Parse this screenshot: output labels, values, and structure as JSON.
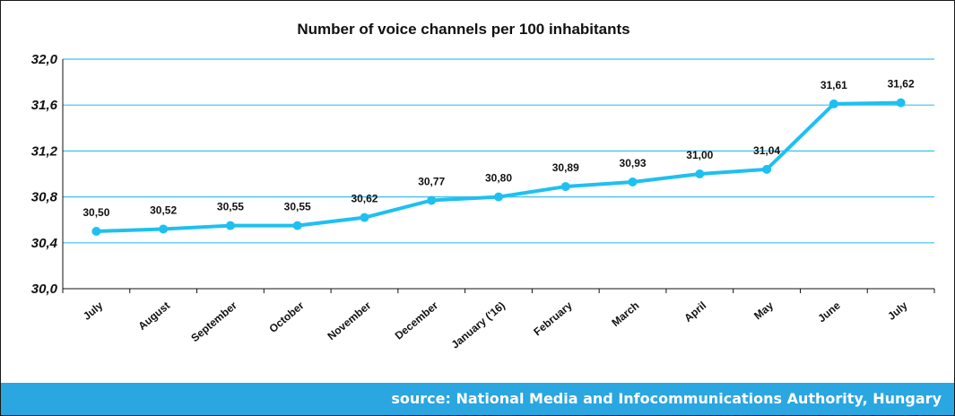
{
  "chart_data": {
    "type": "line",
    "title": "Number of voice channels per 100 inhabitants",
    "xlabel": "",
    "ylabel": "",
    "categories": [
      "July",
      "August",
      "September",
      "October",
      "November",
      "December",
      "January ('16)",
      "February",
      "March",
      "April",
      "May",
      "June",
      "July"
    ],
    "series": [
      {
        "values": [
          30.5,
          30.52,
          30.55,
          30.55,
          30.62,
          30.77,
          30.8,
          30.89,
          30.93,
          31.0,
          31.04,
          31.61,
          31.62
        ]
      }
    ],
    "data_labels": [
      "30,50",
      "30,52",
      "30,55",
      "30,55",
      "30,62",
      "30,77",
      "30,80",
      "30,89",
      "30,93",
      "31,00",
      "31,04",
      "31,61",
      "31,62"
    ],
    "ylim": [
      30.0,
      32.0
    ],
    "yticks": [
      "30,0",
      "30,4",
      "30,8",
      "31,2",
      "31,6",
      "32,0"
    ],
    "ytick_values": [
      30.0,
      30.4,
      30.8,
      31.2,
      31.6,
      32.0
    ],
    "grid": true,
    "legend": "none"
  },
  "footer": {
    "source_text": "source: National Media and Infocommunications Authority, Hungary"
  },
  "colors": {
    "line": "#1ec0f0",
    "gridline": "#3cc0ea",
    "axis": "#111111",
    "footer_band": "#2aa6e0"
  }
}
